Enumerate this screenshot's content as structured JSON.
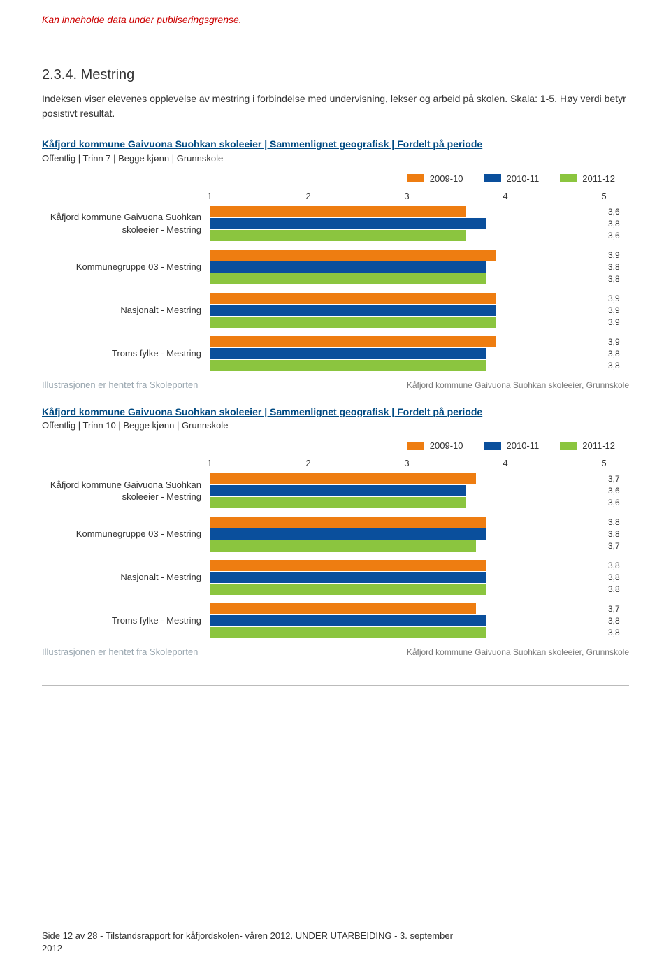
{
  "colors": {
    "orange": "#ee7d11",
    "blue": "#0a4f9c",
    "green": "#8bc53f",
    "warning": "#cc0000",
    "link": "#004a82",
    "muted": "#9aa7b0",
    "soft": "#787878"
  },
  "warning_text": "Kan inneholde data under publiseringsgrense.",
  "section_number_title": "2.3.4. Mestring",
  "intro_text": "Indeksen viser elevenes opplevelse av mestring i forbindelse med undervisning, lekser og arbeid på skolen. Skala: 1-5. Høy verdi betyr posistivt resultat.",
  "axis": {
    "min": 1,
    "max": 5,
    "ticks": [
      1,
      2,
      3,
      4,
      5
    ]
  },
  "legend": [
    {
      "label": "2009-10",
      "color": "#ee7d11"
    },
    {
      "label": "2010-11",
      "color": "#0a4f9c"
    },
    {
      "label": "2011-12",
      "color": "#8bc53f"
    }
  ],
  "illustration_note": "Illustrasjonen er hentet fra Skoleporten",
  "source_note": "Kåfjord kommune Gaivuona Suohkan skoleeier, Grunnskole",
  "chart1": {
    "title": "Kåfjord kommune Gaivuona Suohkan skoleeier | Sammenlignet geografisk | Fordelt på periode",
    "subtitle": "Offentlig | Trinn 7 | Begge kjønn | Grunnskole",
    "groups": [
      {
        "label_lines": [
          "Kåfjord kommune Gaivuona Suohkan",
          "skoleeier - Mestring"
        ],
        "values": [
          "3,6",
          "3,8",
          "3,6"
        ]
      },
      {
        "label_lines": [
          "Kommunegruppe 03 - Mestring"
        ],
        "values": [
          "3,9",
          "3,8",
          "3,8"
        ]
      },
      {
        "label_lines": [
          "Nasjonalt - Mestring"
        ],
        "values": [
          "3,9",
          "3,9",
          "3,9"
        ]
      },
      {
        "label_lines": [
          "Troms fylke - Mestring"
        ],
        "values": [
          "3,9",
          "3,8",
          "3,8"
        ]
      }
    ]
  },
  "chart2": {
    "title": "Kåfjord kommune Gaivuona Suohkan skoleeier | Sammenlignet geografisk | Fordelt på periode",
    "subtitle": "Offentlig | Trinn 10 | Begge kjønn | Grunnskole",
    "groups": [
      {
        "label_lines": [
          "Kåfjord kommune Gaivuona Suohkan",
          "skoleeier - Mestring"
        ],
        "values": [
          "3,7",
          "3,6",
          "3,6"
        ]
      },
      {
        "label_lines": [
          "Kommunegruppe 03 - Mestring"
        ],
        "values": [
          "3,8",
          "3,8",
          "3,7"
        ]
      },
      {
        "label_lines": [
          "Nasjonalt - Mestring"
        ],
        "values": [
          "3,8",
          "3,8",
          "3,8"
        ]
      },
      {
        "label_lines": [
          "Troms fylke - Mestring"
        ],
        "values": [
          "3,7",
          "3,8",
          "3,8"
        ]
      }
    ]
  },
  "footer_line1": "Side 12 av 28 - Tilstandsrapport for kåfjordskolen- våren 2012. UNDER UTARBEIDING - 3. september",
  "footer_line2": "2012"
}
